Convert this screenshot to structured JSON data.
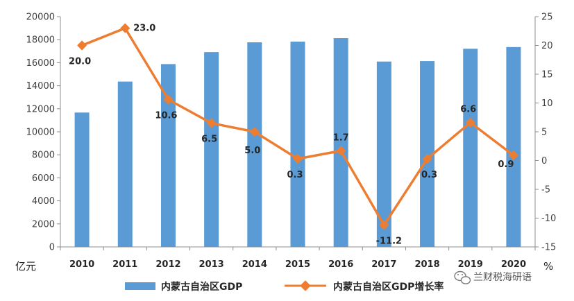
{
  "chart_data": {
    "type": "bar+line",
    "categories": [
      "2010",
      "2011",
      "2012",
      "2013",
      "2014",
      "2015",
      "2016",
      "2017",
      "2018",
      "2019",
      "2020"
    ],
    "series": [
      {
        "name": "内蒙古自治区GDP",
        "type": "bar",
        "axis": "left",
        "color": "#5B9BD5",
        "values": [
          11670,
          14360,
          15880,
          16920,
          17770,
          17830,
          18130,
          16100,
          16140,
          17210,
          17360
        ]
      },
      {
        "name": "内蒙古自治区GDP增长率",
        "type": "line",
        "axis": "right",
        "color": "#ED7D31",
        "values": [
          20.0,
          23.0,
          10.6,
          6.5,
          5.0,
          0.3,
          1.7,
          -11.2,
          0.3,
          6.6,
          0.9
        ],
        "labels": [
          "20.0",
          "23.0",
          "10.6",
          "6.5",
          "5.0",
          "0.3",
          "1.7",
          "-11.2",
          "0.3",
          "6.6",
          "0.9"
        ]
      }
    ],
    "y_left": {
      "min": 0,
      "max": 20000,
      "step": 2000,
      "unit": "亿元",
      "ticks": [
        "0",
        "2000",
        "4000",
        "6000",
        "8000",
        "10000",
        "12000",
        "14000",
        "16000",
        "18000",
        "20000"
      ]
    },
    "y_right": {
      "min": -15,
      "max": 25,
      "step": 5,
      "unit": "%",
      "ticks": [
        "-15",
        "-10",
        "-5",
        "0",
        "5",
        "10",
        "15",
        "20",
        "25"
      ]
    },
    "grid": false,
    "legend": "bottom"
  },
  "watermark": {
    "text": "兰财税海研语",
    "icon": "wechat-icon"
  }
}
